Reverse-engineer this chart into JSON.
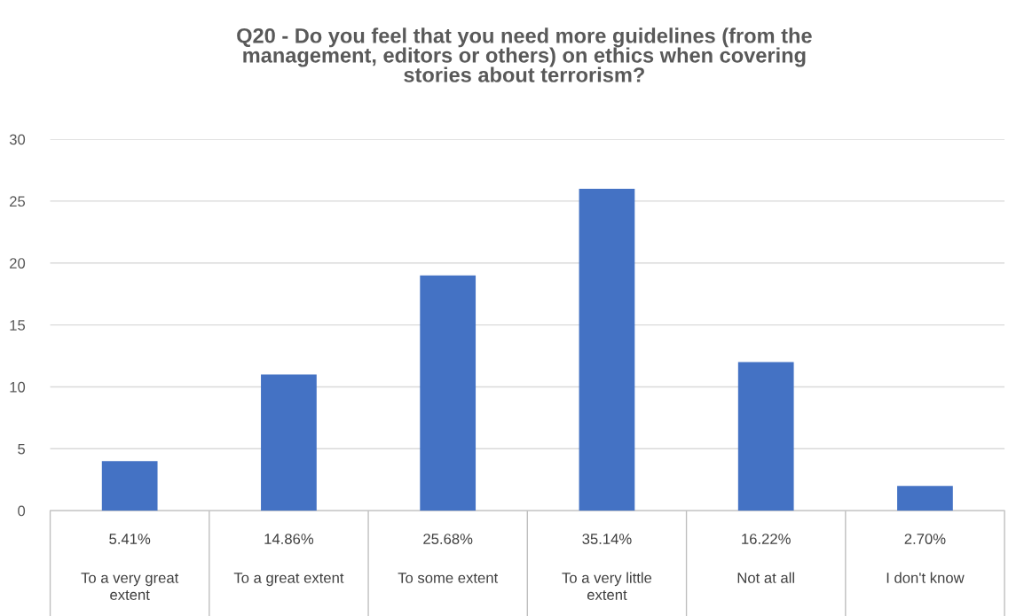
{
  "chart_data": {
    "type": "bar",
    "title": "Q20 - Do you feel that you need more guidelines (from the\nmanagement, editors or others) on ethics when covering\nstories about terrorism?",
    "categories": [
      "To a very great extent",
      "To a great extent",
      "To some extent",
      "To a very little extent",
      "Not at all",
      "I don't know"
    ],
    "values": [
      4,
      11,
      19,
      26,
      12,
      2
    ],
    "annotations": [
      "5.41%",
      "14.86%",
      "25.68%",
      "35.14%",
      "16.22%",
      "2.70%"
    ],
    "color": "#4472c4",
    "ylim": [
      0,
      30
    ],
    "yticks": [
      0,
      5,
      10,
      15,
      20,
      25,
      30
    ],
    "grid": "y"
  }
}
